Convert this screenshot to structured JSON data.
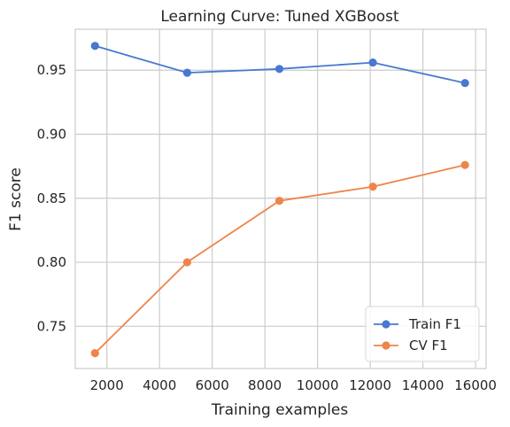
{
  "chart_data": {
    "type": "line",
    "title": "Learning Curve: Tuned XGBoost",
    "xlabel": "Training examples",
    "ylabel": "F1 score",
    "xlim": [
      800,
      16400
    ],
    "ylim": [
      0.717,
      0.982
    ],
    "xticks": [
      2000,
      4000,
      6000,
      8000,
      10000,
      12000,
      14000,
      16000
    ],
    "yticks": [
      0.75,
      0.8,
      0.85,
      0.9,
      0.95
    ],
    "xtick_labels": [
      "2000",
      "4000",
      "6000",
      "8000",
      "10000",
      "12000",
      "14000",
      "16000"
    ],
    "ytick_labels": [
      "0.75",
      "0.80",
      "0.85",
      "0.90",
      "0.95"
    ],
    "grid": true,
    "legend_position": "lower-right",
    "series": [
      {
        "name": "Train F1",
        "color": "#4878d0",
        "marker": "circle",
        "x": [
          1550,
          5050,
          8550,
          12100,
          15600
        ],
        "y": [
          0.969,
          0.948,
          0.951,
          0.956,
          0.94
        ]
      },
      {
        "name": "CV F1",
        "color": "#ee854a",
        "marker": "circle",
        "x": [
          1550,
          5050,
          8550,
          12100,
          15600
        ],
        "y": [
          0.729,
          0.8,
          0.848,
          0.859,
          0.876
        ]
      }
    ]
  }
}
